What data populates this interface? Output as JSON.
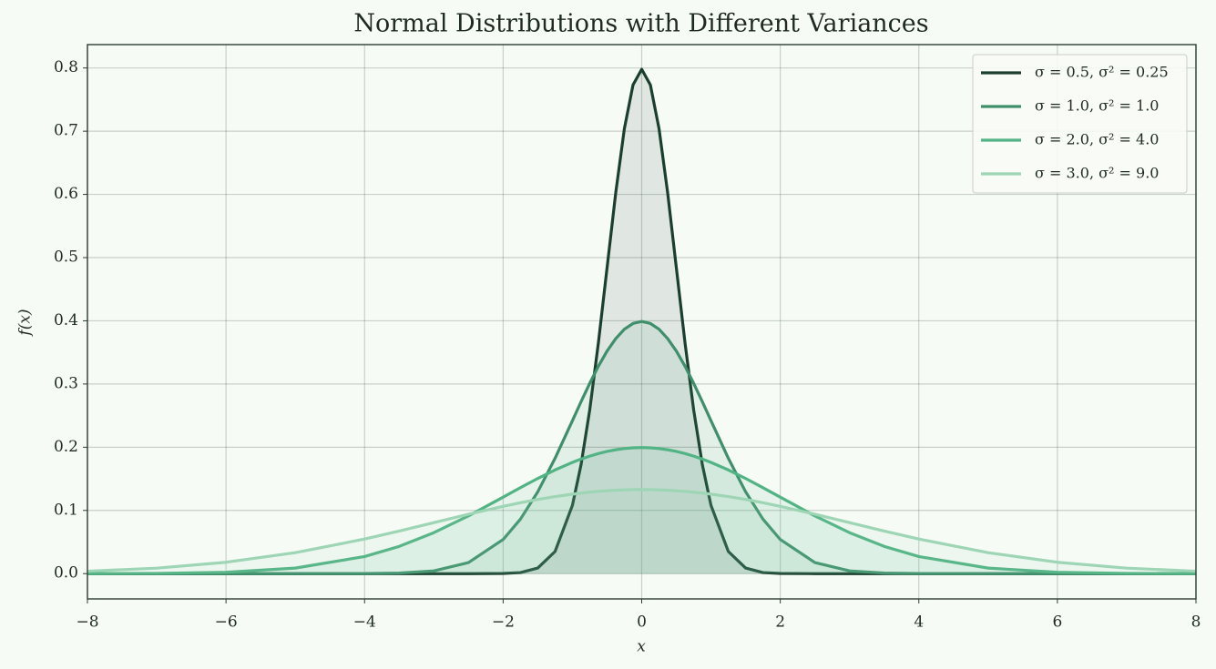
{
  "chart_data": {
    "type": "line",
    "title": "Normal Distributions with Different Variances",
    "x_label": "x",
    "y_label": "f(x)",
    "x": [
      -8,
      -7,
      -6,
      -5,
      -4,
      -3.5,
      -3,
      -2.5,
      -2,
      -1.75,
      -1.5,
      -1.25,
      -1,
      -0.875,
      -0.75,
      -0.625,
      -0.5,
      -0.375,
      -0.25,
      -0.125,
      0,
      0.125,
      0.25,
      0.375,
      0.5,
      0.625,
      0.75,
      0.875,
      1,
      1.25,
      1.5,
      1.75,
      2,
      2.5,
      3,
      3.5,
      4,
      5,
      6,
      7,
      8
    ],
    "series": [
      {
        "name": "σ = 0.5, σ² = 0.25",
        "color": "#1b3f2e",
        "values": [
          0,
          0,
          0,
          0,
          0,
          0,
          0,
          0,
          0.0003,
          0.0017,
          0.0089,
          0.0351,
          0.108,
          0.1726,
          0.259,
          0.3653,
          0.4839,
          0.6023,
          0.7041,
          0.7733,
          0.7979,
          0.7733,
          0.7041,
          0.6023,
          0.4839,
          0.3653,
          0.259,
          0.1726,
          0.108,
          0.0351,
          0.0089,
          0.0017,
          0.0003,
          0,
          0,
          0,
          0,
          0,
          0,
          0,
          0
        ]
      },
      {
        "name": "σ = 1.0, σ² = 1.0",
        "color": "#3f8f6b",
        "values": [
          0,
          0,
          0,
          0,
          0.0001,
          0.0009,
          0.0044,
          0.0175,
          0.054,
          0.0863,
          0.1295,
          0.1826,
          0.242,
          0.2721,
          0.3011,
          0.3282,
          0.3521,
          0.3718,
          0.3867,
          0.3958,
          0.3989,
          0.3958,
          0.3867,
          0.3718,
          0.3521,
          0.3282,
          0.3011,
          0.2721,
          0.242,
          0.1826,
          0.1295,
          0.0863,
          0.054,
          0.0175,
          0.0044,
          0.0009,
          0.0001,
          0,
          0,
          0,
          0
        ]
      },
      {
        "name": "σ = 2.0, σ² = 4.0",
        "color": "#52b385",
        "values": [
          0.0001,
          0.0004,
          0.0022,
          0.0088,
          0.027,
          0.0431,
          0.0648,
          0.0913,
          0.121,
          0.136,
          0.1506,
          0.1641,
          0.176,
          0.1813,
          0.1859,
          0.19,
          0.1933,
          0.196,
          0.1979,
          0.1991,
          0.1995,
          0.1991,
          0.1979,
          0.196,
          0.1933,
          0.19,
          0.1859,
          0.1813,
          0.176,
          0.1641,
          0.1506,
          0.136,
          0.121,
          0.0913,
          0.0648,
          0.0431,
          0.027,
          0.0088,
          0.0022,
          0.0004,
          0.0001
        ]
      },
      {
        "name": "σ = 3.0, σ² = 9.0",
        "color": "#9dd5b5",
        "values": [
          0.0038,
          0.0087,
          0.018,
          0.0332,
          0.0547,
          0.0673,
          0.0807,
          0.094,
          0.1065,
          0.1122,
          0.1174,
          0.1219,
          0.1258,
          0.1274,
          0.1289,
          0.1301,
          0.1311,
          0.1319,
          0.1325,
          0.1329,
          0.133,
          0.1329,
          0.1325,
          0.1319,
          0.1311,
          0.1301,
          0.1289,
          0.1274,
          0.1258,
          0.1219,
          0.1174,
          0.1122,
          0.1065,
          0.094,
          0.0807,
          0.0673,
          0.0547,
          0.0332,
          0.018,
          0.0087,
          0.0038
        ]
      }
    ],
    "xlim": [
      -8,
      8
    ],
    "xticks": [
      {
        "value": -8,
        "label": "−8"
      },
      {
        "value": -6,
        "label": "−6"
      },
      {
        "value": -4,
        "label": "−4"
      },
      {
        "value": -2,
        "label": "−2"
      },
      0,
      2,
      4,
      6,
      8
    ],
    "ylim": [
      -0.04,
      0.837
    ],
    "yticks": [
      {
        "value": 0,
        "label": "0.0"
      },
      0.1,
      0.2,
      0.3,
      0.4,
      0.5,
      0.6,
      0.7,
      0.8
    ],
    "grid": true,
    "fill": true,
    "legend": "upper right"
  }
}
